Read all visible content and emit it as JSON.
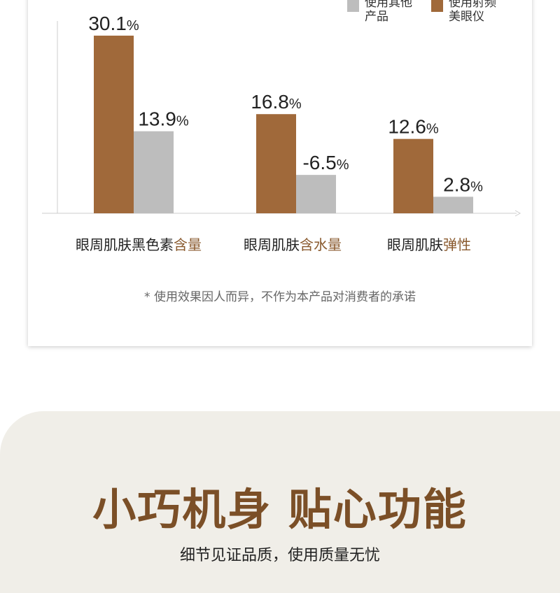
{
  "colors": {
    "brand": "#a0693a",
    "other": "#bdbdbd",
    "title": "#7b4f27",
    "section_bg": "#f0eee8"
  },
  "chart_data": {
    "type": "bar",
    "categories": [
      {
        "prefix": "眼周肌肤黑色素",
        "highlight": "含量"
      },
      {
        "prefix": "眼周肌肤",
        "highlight": "含水量"
      },
      {
        "prefix": "眼周肌肤",
        "highlight": "弹性"
      }
    ],
    "series": [
      {
        "name": "使用射频美眼仪",
        "name_lines": [
          "使用射频",
          "美眼仪"
        ],
        "color": "#a0693a",
        "values": [
          30.1,
          16.8,
          12.6
        ],
        "labels": [
          "30.1",
          "16.8",
          "12.6"
        ]
      },
      {
        "name": "使用其他产品",
        "name_lines": [
          "使用其他",
          "产品"
        ],
        "color": "#bdbdbd",
        "values": [
          13.9,
          -6.5,
          2.8
        ],
        "labels": [
          "13.9",
          "-6.5",
          "2.8"
        ]
      }
    ],
    "unit": "%",
    "legend": "top-right",
    "grid": false
  },
  "note": "* 使用效果因人而异，不作为本产品对消费者的承诺",
  "section": {
    "title": "小巧机身 贴心功能",
    "subtitle": "细节见证品质，使用质量无忧"
  }
}
